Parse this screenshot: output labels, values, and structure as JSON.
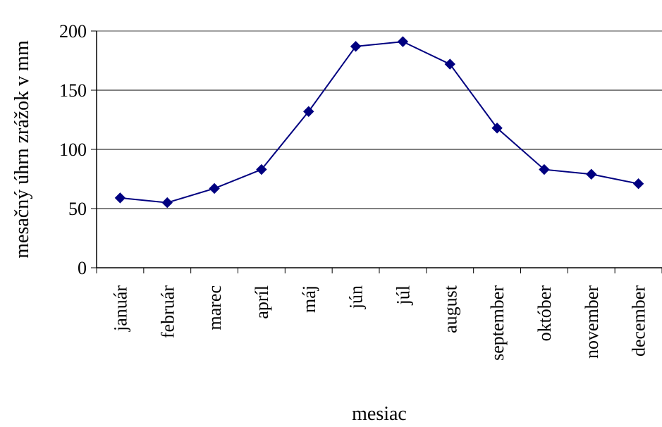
{
  "chart_data": {
    "type": "line",
    "title": "",
    "xlabel": "mesiac",
    "ylabel": "mesačný úhrn zrážok v mm",
    "ylim": [
      0,
      200
    ],
    "yticks": [
      0,
      50,
      100,
      150,
      200
    ],
    "grid": true,
    "legend": "none",
    "categories": [
      "január",
      "február",
      "marec",
      "apríl",
      "máj",
      "jún",
      "júl",
      "august",
      "september",
      "október",
      "november",
      "december"
    ],
    "series": [
      {
        "values": [
          59,
          55,
          67,
          83,
          132,
          187,
          191,
          172,
          118,
          83,
          79,
          71
        ],
        "color": "#000080",
        "marker": "diamond"
      }
    ]
  }
}
